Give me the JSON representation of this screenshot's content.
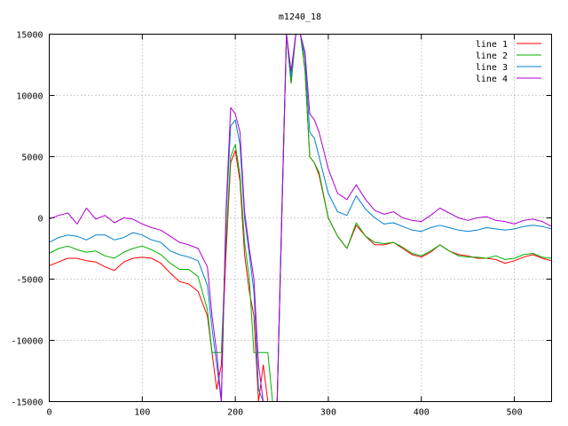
{
  "chart_data": {
    "type": "line",
    "title": "m1240_18",
    "xlabel": "",
    "ylabel": "",
    "xlim": [
      0,
      540
    ],
    "ylim": [
      -15000,
      15000
    ],
    "xticks": [
      0,
      100,
      200,
      300,
      400,
      500
    ],
    "yticks": [
      -15000,
      -10000,
      -5000,
      0,
      5000,
      10000,
      15000
    ],
    "xtick_labels": [
      "0",
      "100",
      "200",
      "300",
      "400",
      "500"
    ],
    "ytick_labels": [
      "-15000",
      "-10000",
      "-5000",
      "0",
      "5000",
      "10000",
      "15000"
    ],
    "grid": true,
    "legend_position": "top-right",
    "x": [
      0,
      10,
      20,
      30,
      40,
      50,
      60,
      70,
      80,
      90,
      100,
      110,
      120,
      130,
      140,
      150,
      160,
      170,
      175,
      180,
      185,
      190,
      195,
      200,
      205,
      210,
      215,
      220,
      225,
      230,
      235,
      240,
      245,
      250,
      255,
      260,
      265,
      270,
      275,
      280,
      285,
      290,
      300,
      310,
      320,
      330,
      340,
      350,
      360,
      370,
      380,
      390,
      400,
      410,
      420,
      430,
      440,
      450,
      460,
      470,
      480,
      490,
      500,
      510,
      520,
      530,
      540
    ],
    "series": [
      {
        "name": "line 1",
        "color": "#ff0000",
        "values": [
          -3900,
          -3600,
          -3300,
          -3300,
          -3500,
          -3600,
          -4000,
          -4300,
          -3600,
          -3300,
          -3200,
          -3300,
          -3700,
          -4500,
          -5200,
          -5400,
          -6000,
          -8000,
          -11000,
          -14000,
          -12000,
          -3000,
          4500,
          5500,
          3000,
          -3000,
          -6000,
          -8000,
          -15000,
          -12000,
          -15000,
          -15000,
          -15000,
          0,
          15000,
          11000,
          15000,
          15000,
          12000,
          5000,
          4500,
          3500,
          0,
          -1500,
          -2500,
          -600,
          -1500,
          -2200,
          -2200,
          -2000,
          -2500,
          -3000,
          -3200,
          -2800,
          -2200,
          -2700,
          -3000,
          -3100,
          -3300,
          -3300,
          -3400,
          -3700,
          -3500,
          -3200,
          -3000,
          -3300,
          -3500
        ]
      },
      {
        "name": "line 2",
        "color": "#00b000",
        "values": [
          -2900,
          -2500,
          -2300,
          -2600,
          -2800,
          -2700,
          -3100,
          -3300,
          -2800,
          -2500,
          -2300,
          -2600,
          -3000,
          -3700,
          -4200,
          -4200,
          -4800,
          -7500,
          -11000,
          -11000,
          -11000,
          -2000,
          5000,
          6000,
          3500,
          -2000,
          -5000,
          -11000,
          -11000,
          -11000,
          -11000,
          -15000,
          -15000,
          0,
          15000,
          11000,
          15000,
          15000,
          12000,
          5000,
          4500,
          3700,
          0,
          -1500,
          -2500,
          -400,
          -1500,
          -2000,
          -2100,
          -2000,
          -2400,
          -2900,
          -3100,
          -2700,
          -2200,
          -2700,
          -3100,
          -3200,
          -3200,
          -3300,
          -3100,
          -3400,
          -3300,
          -3000,
          -2900,
          -3200,
          -3300
        ]
      },
      {
        "name": "line 3",
        "color": "#0080d0",
        "values": [
          -2000,
          -1600,
          -1400,
          -1500,
          -1800,
          -1400,
          -1400,
          -1800,
          -1600,
          -1200,
          -1400,
          -1800,
          -2000,
          -2700,
          -3000,
          -3200,
          -3500,
          -5500,
          -9000,
          -12000,
          -15000,
          0,
          7500,
          8000,
          6000,
          0,
          -3000,
          -6000,
          -14000,
          -15000,
          -15000,
          -15000,
          -15000,
          0,
          15000,
          11500,
          15000,
          15000,
          13000,
          7000,
          6500,
          5000,
          2000,
          500,
          200,
          1800,
          700,
          0,
          -500,
          -400,
          -700,
          -1000,
          -1100,
          -800,
          -600,
          -800,
          -1000,
          -1100,
          -1000,
          -800,
          -900,
          -1000,
          -900,
          -700,
          -600,
          -700,
          -900
        ]
      },
      {
        "name": "line 4",
        "color": "#b000d0",
        "values": [
          -100,
          200,
          400,
          -500,
          800,
          -100,
          200,
          -400,
          0,
          -100,
          -500,
          -800,
          -1000,
          -1500,
          -2000,
          -2200,
          -2500,
          -4000,
          -8000,
          -11000,
          -15000,
          500,
          9000,
          8500,
          7000,
          500,
          -2500,
          -5000,
          -12000,
          -15000,
          -15000,
          -15000,
          -15000,
          500,
          15000,
          12000,
          15000,
          15000,
          13500,
          8500,
          8000,
          7000,
          4000,
          2000,
          1500,
          2700,
          1500,
          600,
          300,
          500,
          0,
          -200,
          -300,
          200,
          800,
          400,
          0,
          -200,
          0,
          100,
          -200,
          -300,
          -500,
          -200,
          -100,
          -300,
          -700
        ]
      }
    ]
  }
}
